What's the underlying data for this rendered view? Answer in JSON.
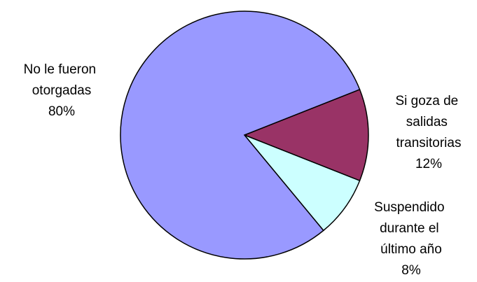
{
  "chart_data": {
    "type": "pie",
    "categories": [
      "Si goza de salidas transitorias",
      "Suspendido durante el último año",
      "No le fueron otorgadas"
    ],
    "values": [
      12,
      8,
      80
    ],
    "value_labels": [
      "12%",
      "8%",
      "80%"
    ],
    "colors": [
      "#993366",
      "#ccffff",
      "#9999ff"
    ]
  }
}
